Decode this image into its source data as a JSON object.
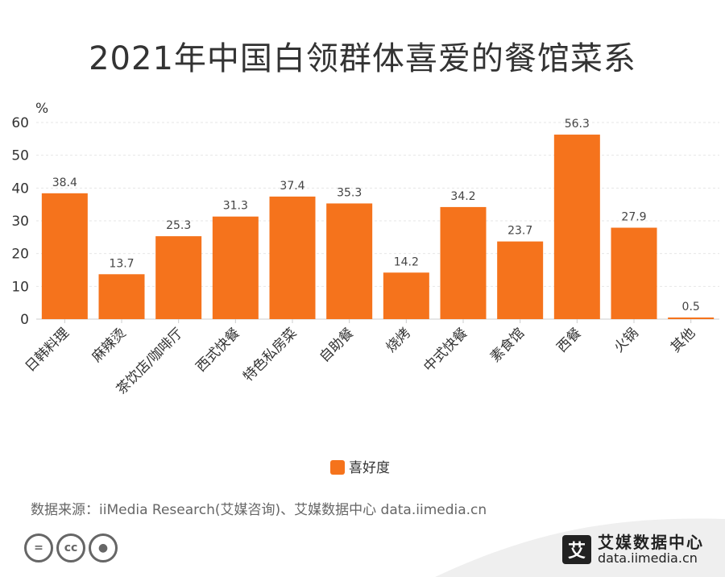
{
  "title": "2021年中国白领群体喜爱的餐馆菜系",
  "source": "数据来源：iiMedia Research(艾媒咨询)、艾媒数据中心 data.iimedia.cn",
  "brand": {
    "logo_char": "艾",
    "name": "艾媒数据中心",
    "url": "data.iimedia.cn",
    "icons": [
      "equal-icon",
      "cc-icon",
      "person-icon"
    ]
  },
  "chart_data": {
    "type": "bar",
    "title": "2021年中国白领群体喜爱的餐馆菜系",
    "unit": "%",
    "categories": [
      "日韩料理",
      "麻辣烫",
      "茶饮店/咖啡厅",
      "西式快餐",
      "特色私房菜",
      "自助餐",
      "烧烤",
      "中式快餐",
      "素食馆",
      "西餐",
      "火锅",
      "其他"
    ],
    "series": [
      {
        "name": "喜好度",
        "values": [
          38.4,
          13.7,
          25.3,
          31.3,
          37.4,
          35.3,
          14.2,
          34.2,
          23.7,
          56.3,
          27.9,
          0.5
        ]
      }
    ],
    "ylim": [
      0,
      60
    ],
    "yticks": [
      0,
      10,
      20,
      30,
      40,
      50,
      60
    ],
    "grid": true,
    "legend_position": "bottom",
    "colors": {
      "bar": "#F5731C",
      "grid": "#e6e6e6",
      "axis": "#cccccc"
    }
  }
}
